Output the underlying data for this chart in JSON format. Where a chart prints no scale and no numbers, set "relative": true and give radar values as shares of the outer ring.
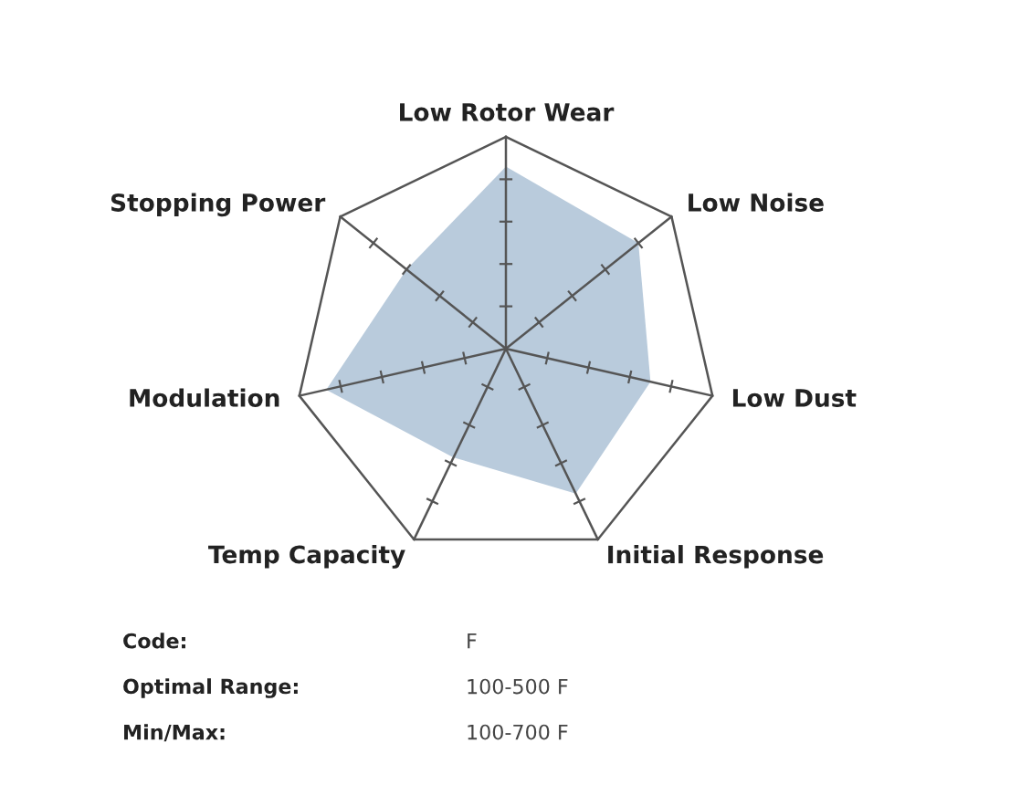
{
  "chart_data": {
    "type": "radar",
    "relative": true,
    "categories": [
      "Low Rotor Wear",
      "Low Noise",
      "Low Dust",
      "Initial Response",
      "Temp Capacity",
      "Modulation",
      "Stopping Power"
    ],
    "series": [
      {
        "color": "#b9cbdc",
        "values": [
          0.86,
          0.8,
          0.7,
          0.76,
          0.57,
          0.87,
          0.6
        ]
      }
    ],
    "annotations": [
      "Code:",
      "F",
      "Optimal Range:",
      "100-500 F",
      "Min/Max:",
      "100-700 F"
    ]
  }
}
